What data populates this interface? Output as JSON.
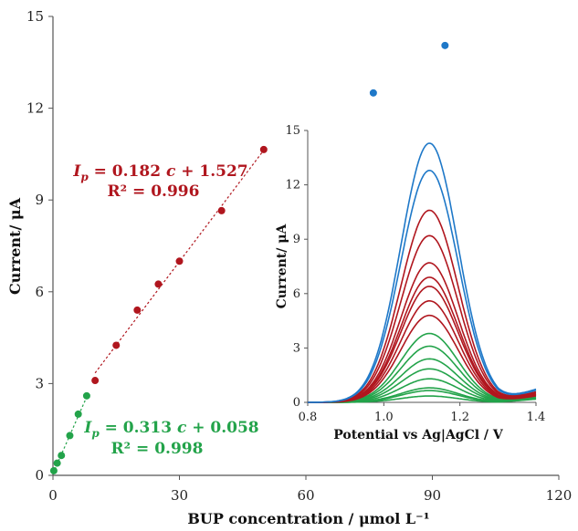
{
  "chart_data": [
    {
      "type": "scatter",
      "title": "",
      "xlabel": "BUP concentration / μmol L⁻¹",
      "ylabel": "Current/ μA",
      "xlim": [
        0,
        120
      ],
      "ylim": [
        0,
        15
      ],
      "x_ticks": [
        "0",
        "30",
        "60",
        "90",
        "120"
      ],
      "y_ticks": [
        "0",
        "3",
        "6",
        "9",
        "12",
        "15"
      ],
      "grid": false,
      "series": [
        {
          "color": "#23A34A",
          "points": [
            [
              0.2,
              0.15
            ],
            [
              1.0,
              0.4
            ],
            [
              2.0,
              0.65
            ],
            [
              4.0,
              1.3
            ],
            [
              6.0,
              2.0
            ],
            [
              8.0,
              2.6
            ]
          ]
        },
        {
          "color": "#B0161E",
          "points": [
            [
              10,
              3.1
            ],
            [
              15,
              4.25
            ],
            [
              20,
              5.4
            ],
            [
              25,
              6.25
            ],
            [
              30,
              7.0
            ],
            [
              40,
              8.65
            ],
            [
              50,
              10.65
            ]
          ]
        },
        {
          "color": "#1E78C8",
          "points": [
            [
              76,
              12.5
            ],
            [
              93,
              14.05
            ]
          ]
        }
      ],
      "fits": [
        {
          "color": "#23A34A",
          "x_range": [
            0,
            8
          ],
          "slope": 0.313,
          "intercept": 0.058,
          "equation_var": "I",
          "equation_sub": "p",
          "equation_rest": " = 0.313 ",
          "equation_c": "c",
          "equation_tail": " + 0.058",
          "r2_label": "R² = 0.998"
        },
        {
          "color": "#B0161E",
          "x_range": [
            10,
            50
          ],
          "slope": 0.182,
          "intercept": 1.527,
          "equation_var": "I",
          "equation_sub": "p",
          "equation_rest": " = 0.182 ",
          "equation_c": "c",
          "equation_tail": " + 1.527",
          "r2_label": "R² = 0.996"
        }
      ]
    },
    {
      "type": "line",
      "title": "",
      "xlabel": "Potential vs Ag|AgCl / V",
      "ylabel": "Current/ μA",
      "xlim": [
        0.8,
        1.4
      ],
      "ylim": [
        0,
        15
      ],
      "x_ticks": [
        "0.8",
        "1.0",
        "1.2",
        "1.4"
      ],
      "y_ticks": [
        "0",
        "3",
        "6",
        "9",
        "12",
        "15"
      ],
      "grid": false,
      "peak_potential": 1.12,
      "peak_width": 0.075,
      "series": [
        {
          "color": "#23A34A",
          "peak": 0.35
        },
        {
          "color": "#23A34A",
          "peak": 0.65
        },
        {
          "color": "#23A34A",
          "peak": 0.8
        },
        {
          "color": "#23A34A",
          "peak": 1.3
        },
        {
          "color": "#23A34A",
          "peak": 1.85
        },
        {
          "color": "#23A34A",
          "peak": 2.4
        },
        {
          "color": "#23A34A",
          "peak": 3.1
        },
        {
          "color": "#23A34A",
          "peak": 3.8
        },
        {
          "color": "#B0161E",
          "peak": 4.8
        },
        {
          "color": "#B0161E",
          "peak": 5.6
        },
        {
          "color": "#B0161E",
          "peak": 6.4
        },
        {
          "color": "#B0161E",
          "peak": 6.9
        },
        {
          "color": "#B0161E",
          "peak": 7.7
        },
        {
          "color": "#B0161E",
          "peak": 9.2
        },
        {
          "color": "#B0161E",
          "peak": 10.6
        },
        {
          "color": "#1E78C8",
          "peak": 12.8
        },
        {
          "color": "#1E78C8",
          "peak": 14.3
        }
      ]
    }
  ]
}
